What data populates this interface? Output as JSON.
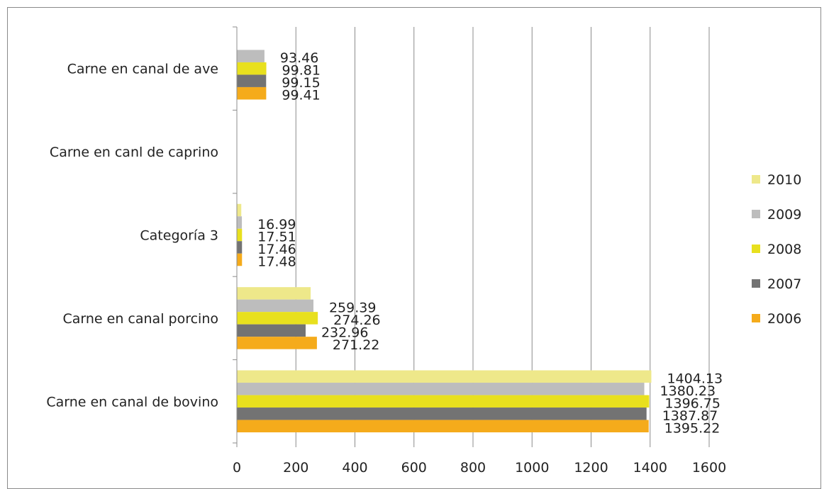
{
  "chart_data": {
    "type": "bar",
    "orientation": "horizontal",
    "title": "",
    "xlabel": "",
    "ylabel": "",
    "xlim": [
      0,
      1600
    ],
    "xticks": [
      0,
      200,
      400,
      600,
      800,
      1000,
      1200,
      1400,
      1600
    ],
    "grid": true,
    "legend_position": "right",
    "categories": [
      "Carne en canal de ave",
      "Carne en canl de caprino",
      "Categoría 3",
      "Carne en canal porcino",
      "Carne en canal de bovino"
    ],
    "series": [
      {
        "name": "2010",
        "color": "#EEE88A",
        "values": [
          null,
          null,
          15,
          250,
          1404.13
        ],
        "labels": [
          "",
          "",
          "",
          "",
          "1404.13"
        ]
      },
      {
        "name": "2009",
        "color": "#BDBDBD",
        "values": [
          93.46,
          null,
          16.99,
          259.39,
          1380.23
        ],
        "labels": [
          "93.46",
          "",
          "16.99",
          "259.39",
          "1380.23"
        ]
      },
      {
        "name": "2008",
        "color": "#E8E01E",
        "values": [
          99.81,
          null,
          17.51,
          274.26,
          1396.75
        ],
        "labels": [
          "99.81",
          "",
          "17.51",
          "274.26",
          "1396.75"
        ]
      },
      {
        "name": "2007",
        "color": "#737373",
        "values": [
          99.15,
          null,
          17.46,
          232.96,
          1387.87
        ],
        "labels": [
          "99.15",
          "",
          "17.46",
          "232.96",
          "1387.87"
        ]
      },
      {
        "name": "2006",
        "color": "#F5AB1B",
        "values": [
          99.41,
          null,
          17.48,
          271.22,
          1395.22
        ],
        "labels": [
          "99.41",
          "",
          "17.48",
          "271.22",
          "1395.22"
        ]
      }
    ],
    "legend_order": [
      "2010",
      "2009",
      "2008",
      "2007",
      "2006"
    ]
  }
}
